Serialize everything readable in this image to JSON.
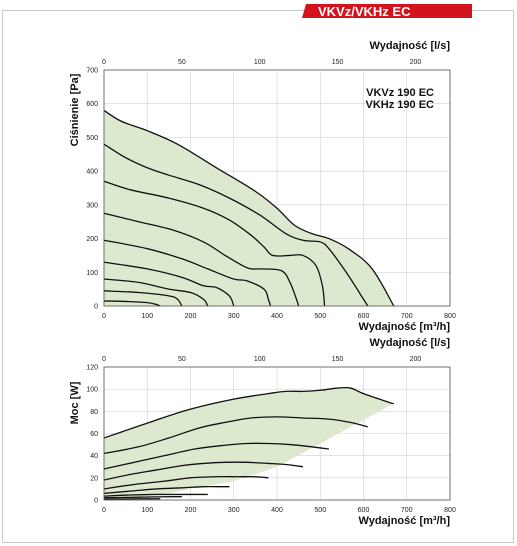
{
  "header": {
    "badge": "VKVz/VKHz EC",
    "badge_color": "#d2141e"
  },
  "models": [
    "VKVz 190 EC",
    "VKHz 190 EC"
  ],
  "chart_data": [
    {
      "type": "line",
      "title": "",
      "xlabel": "Wydajność [m³/h]",
      "x2label": "Wydajność [l/s]",
      "ylabel": "Ciśnienie [Pa]",
      "xlim": [
        0,
        800
      ],
      "x2lim": [
        0,
        222.2
      ],
      "ylim": [
        0,
        700
      ],
      "x_ticks": [
        "0",
        "100",
        "200",
        "300",
        "400",
        "500",
        "600",
        "700",
        "800"
      ],
      "x2_ticks": [
        "0",
        "50",
        "100",
        "150",
        "200"
      ],
      "y_ticks": [
        "0",
        "100",
        "200",
        "300",
        "400",
        "500",
        "600",
        "700"
      ],
      "grid": true,
      "region_color": "#dde9cf",
      "region": [
        [
          0,
          580
        ],
        [
          40,
          548
        ],
        [
          100,
          520
        ],
        [
          170,
          480
        ],
        [
          260,
          410
        ],
        [
          350,
          340
        ],
        [
          400,
          290
        ],
        [
          440,
          240
        ],
        [
          480,
          215
        ],
        [
          520,
          200
        ],
        [
          565,
          170
        ],
        [
          620,
          110
        ],
        [
          670,
          0
        ],
        [
          0,
          0
        ]
      ],
      "series": [
        {
          "points": [
            [
              0,
              580
            ],
            [
              40,
              548
            ],
            [
              100,
              520
            ],
            [
              170,
              480
            ],
            [
              260,
              410
            ],
            [
              350,
              340
            ],
            [
              400,
              290
            ],
            [
              440,
              240
            ],
            [
              480,
              215
            ],
            [
              520,
              200
            ],
            [
              565,
              170
            ],
            [
              620,
              110
            ],
            [
              670,
              0
            ]
          ]
        },
        {
          "points": [
            [
              0,
              480
            ],
            [
              50,
              440
            ],
            [
              100,
              410
            ],
            [
              150,
              388
            ],
            [
              220,
              360
            ],
            [
              290,
              320
            ],
            [
              360,
              270
            ],
            [
              420,
              215
            ],
            [
              460,
              195
            ],
            [
              500,
              190
            ],
            [
              520,
              170
            ],
            [
              560,
              100
            ],
            [
              600,
              20
            ],
            [
              610,
              0
            ]
          ]
        },
        {
          "points": [
            [
              0,
              370
            ],
            [
              60,
              345
            ],
            [
              150,
              320
            ],
            [
              230,
              290
            ],
            [
              290,
              255
            ],
            [
              340,
              210
            ],
            [
              370,
              175
            ],
            [
              390,
              150
            ],
            [
              430,
              150
            ],
            [
              460,
              150
            ],
            [
              490,
              120
            ],
            [
              505,
              60
            ],
            [
              510,
              0
            ]
          ]
        },
        {
          "points": [
            [
              0,
              275
            ],
            [
              80,
              250
            ],
            [
              160,
              225
            ],
            [
              230,
              190
            ],
            [
              280,
              150
            ],
            [
              320,
              120
            ],
            [
              340,
              110
            ],
            [
              360,
              110
            ],
            [
              410,
              105
            ],
            [
              430,
              70
            ],
            [
              445,
              20
            ],
            [
              450,
              0
            ]
          ]
        },
        {
          "points": [
            [
              0,
              195
            ],
            [
              100,
              170
            ],
            [
              180,
              140
            ],
            [
              240,
              110
            ],
            [
              300,
              80
            ],
            [
              330,
              75
            ],
            [
              370,
              50
            ],
            [
              380,
              20
            ],
            [
              385,
              0
            ]
          ]
        },
        {
          "points": [
            [
              0,
              130
            ],
            [
              100,
              110
            ],
            [
              180,
              85
            ],
            [
              230,
              60
            ],
            [
              260,
              55
            ],
            [
              290,
              30
            ],
            [
              300,
              0
            ]
          ]
        },
        {
          "points": [
            [
              0,
              80
            ],
            [
              80,
              70
            ],
            [
              150,
              50
            ],
            [
              200,
              40
            ],
            [
              230,
              20
            ],
            [
              240,
              0
            ]
          ]
        },
        {
          "points": [
            [
              0,
              45
            ],
            [
              80,
              40
            ],
            [
              150,
              30
            ],
            [
              170,
              20
            ],
            [
              180,
              0
            ]
          ]
        },
        {
          "points": [
            [
              0,
              15
            ],
            [
              60,
              13
            ],
            [
              100,
              10
            ],
            [
              120,
              5
            ],
            [
              130,
              0
            ]
          ]
        }
      ]
    },
    {
      "type": "line",
      "title": "",
      "xlabel": "Wydajność [m³/h]",
      "x2label": "Wydajność [l/s]",
      "ylabel": "Moc [W]",
      "xlim": [
        0,
        800
      ],
      "x2lim": [
        0,
        222.2
      ],
      "ylim": [
        0,
        120
      ],
      "x_ticks": [
        "0",
        "100",
        "200",
        "300",
        "400",
        "500",
        "600",
        "700",
        "800"
      ],
      "x2_ticks": [
        "0",
        "50",
        "100",
        "150",
        "200"
      ],
      "y_ticks": [
        "0",
        "20",
        "40",
        "60",
        "80",
        "100",
        "120"
      ],
      "grid": true,
      "region_color": "#dde9cf",
      "region": [
        [
          0,
          56
        ],
        [
          60,
          64
        ],
        [
          120,
          72
        ],
        [
          200,
          82
        ],
        [
          300,
          91
        ],
        [
          380,
          96
        ],
        [
          420,
          98
        ],
        [
          460,
          98
        ],
        [
          500,
          99
        ],
        [
          540,
          101
        ],
        [
          570,
          101
        ],
        [
          600,
          96
        ],
        [
          660,
          88
        ],
        [
          670,
          87
        ],
        [
          400,
          30
        ],
        [
          300,
          17
        ],
        [
          200,
          10
        ],
        [
          150,
          6
        ],
        [
          100,
          4
        ],
        [
          60,
          2
        ],
        [
          0,
          1
        ]
      ],
      "series": [
        {
          "points": [
            [
              0,
              56
            ],
            [
              60,
              64
            ],
            [
              120,
              72
            ],
            [
              200,
              82
            ],
            [
              300,
              91
            ],
            [
              380,
              96
            ],
            [
              420,
              98
            ],
            [
              460,
              98
            ],
            [
              500,
              99
            ],
            [
              540,
              101
            ],
            [
              570,
              101
            ],
            [
              600,
              96
            ],
            [
              660,
              88
            ],
            [
              670,
              87
            ]
          ]
        },
        {
          "points": [
            [
              0,
              42
            ],
            [
              80,
              48
            ],
            [
              150,
              56
            ],
            [
              220,
              65
            ],
            [
              280,
              70
            ],
            [
              340,
              74
            ],
            [
              400,
              75
            ],
            [
              460,
              74
            ],
            [
              520,
              73
            ],
            [
              570,
              70
            ],
            [
              610,
              66
            ]
          ]
        },
        {
          "points": [
            [
              0,
              28
            ],
            [
              70,
              34
            ],
            [
              140,
              40
            ],
            [
              210,
              46
            ],
            [
              270,
              49
            ],
            [
              330,
              51
            ],
            [
              380,
              51
            ],
            [
              430,
              50
            ],
            [
              480,
              48
            ],
            [
              520,
              46
            ]
          ]
        },
        {
          "points": [
            [
              0,
              18
            ],
            [
              60,
              23
            ],
            [
              120,
              27
            ],
            [
              180,
              31
            ],
            [
              230,
              33
            ],
            [
              280,
              34
            ],
            [
              330,
              34
            ],
            [
              380,
              33
            ],
            [
              420,
              32
            ],
            [
              460,
              30
            ]
          ]
        },
        {
          "points": [
            [
              0,
              10
            ],
            [
              70,
              14
            ],
            [
              140,
              17
            ],
            [
              200,
              20
            ],
            [
              260,
              21
            ],
            [
              310,
              21
            ],
            [
              350,
              21
            ],
            [
              380,
              20
            ]
          ]
        },
        {
          "points": [
            [
              0,
              6
            ],
            [
              60,
              8
            ],
            [
              120,
              10
            ],
            [
              180,
              11
            ],
            [
              230,
              12
            ],
            [
              260,
              12
            ],
            [
              290,
              12
            ]
          ]
        },
        {
          "points": [
            [
              0,
              3.5
            ],
            [
              60,
              4.5
            ],
            [
              120,
              5
            ],
            [
              170,
              5
            ],
            [
              220,
              5
            ],
            [
              240,
              5
            ]
          ]
        },
        {
          "points": [
            [
              0,
              2
            ],
            [
              60,
              2.4
            ],
            [
              120,
              2.8
            ],
            [
              160,
              3
            ],
            [
              180,
              3
            ]
          ]
        },
        {
          "points": [
            [
              0,
              0.8
            ],
            [
              60,
              1
            ],
            [
              100,
              1.1
            ],
            [
              130,
              1.1
            ]
          ]
        }
      ]
    }
  ]
}
